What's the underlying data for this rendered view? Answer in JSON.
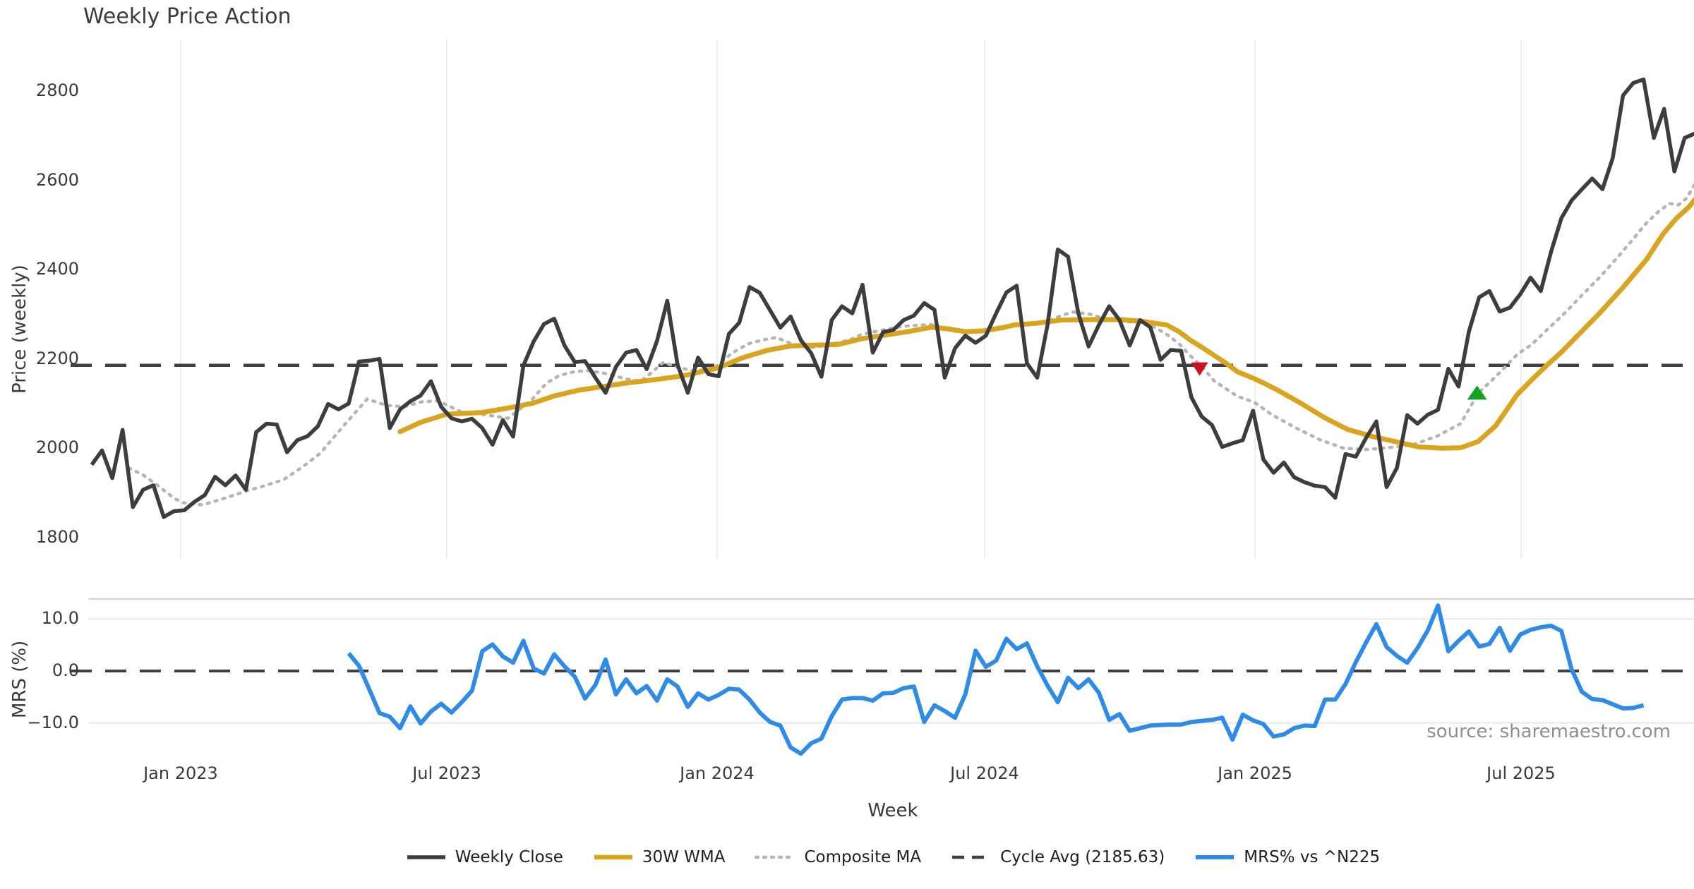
{
  "title": "Weekly Price Action",
  "source_note": "source: sharemaestro.com",
  "axes": {
    "price_axis_title": "Price (weekly)",
    "mrs_axis_title": "MRS (%)",
    "x_axis_title": "Week"
  },
  "legend": {
    "items": [
      {
        "label": "Weekly Close",
        "color": "#3d3d3d",
        "dash": "",
        "width": 5.5
      },
      {
        "label": "30W WMA",
        "color": "#d9a521",
        "dash": "",
        "width": 6.5
      },
      {
        "label": "Composite MA",
        "color": "#b5b5b5",
        "dash": "3 8",
        "width": 4.5
      },
      {
        "label": "Cycle Avg (2185.63)",
        "color": "#3f3f3f",
        "dash": "17 11",
        "width": 4.5
      },
      {
        "label": "MRS% vs ^N225",
        "color": "#2e8be6",
        "dash": "",
        "width": 6
      }
    ]
  },
  "colors": {
    "close": "#3d3d3d",
    "wma": "#d9a521",
    "composite": "#b5b5b5",
    "cycle_dash": "#3f3f3f",
    "mrs": "#2e8be6",
    "grid_vertical": "#ededf2",
    "grid_horizontal": "#e8e8ee",
    "panel_border": "#d4d4da",
    "marker_down": "#cc1322",
    "marker_up": "#13a224"
  },
  "chart_data": [
    {
      "type": "line",
      "panel": "price",
      "ylabel": "Price (weekly)",
      "ylim": [
        1760,
        2880
      ],
      "grid": "vertical-only",
      "x_ticks": [
        {
          "label": "Jan 2023",
          "week": 8.65
        },
        {
          "label": "Jul 2023",
          "week": 34.55
        },
        {
          "label": "Jan 2024",
          "week": 60.85
        },
        {
          "label": "Jul 2024",
          "week": 86.88
        },
        {
          "label": "Jan 2025",
          "week": 113.19
        },
        {
          "label": "Jul 2025",
          "week": 139.08
        }
      ],
      "y_ticks": [
        {
          "label": "2800",
          "value": 2800
        },
        {
          "label": "2600",
          "value": 2600
        },
        {
          "label": "2400",
          "value": 2400
        },
        {
          "label": "2200",
          "value": 2200
        },
        {
          "label": "2000",
          "value": 2000
        },
        {
          "label": "1800",
          "value": 1800
        }
      ],
      "cycle_avg": 2185.63,
      "series": [
        {
          "name": "Weekly Close",
          "style": "solid",
          "start_week": 0,
          "values": [
            1963,
            1995,
            1933,
            2041,
            1868,
            1907,
            1917,
            1846,
            1859,
            1861,
            1880,
            1895,
            1936,
            1917,
            1939,
            1907,
            2036,
            2055,
            2053,
            1991,
            2018,
            2027,
            2049,
            2099,
            2087,
            2100,
            2194,
            2196,
            2200,
            2045,
            2087,
            2105,
            2118,
            2150,
            2093,
            2067,
            2060,
            2066,
            2045,
            2008,
            2063,
            2026,
            2185,
            2239,
            2278,
            2290,
            2230,
            2193,
            2195,
            2158,
            2124,
            2182,
            2214,
            2220,
            2177,
            2240,
            2330,
            2187,
            2124,
            2203,
            2166,
            2161,
            2256,
            2281,
            2361,
            2348,
            2309,
            2270,
            2295,
            2242,
            2213,
            2160,
            2287,
            2318,
            2302,
            2366,
            2214,
            2260,
            2265,
            2287,
            2297,
            2325,
            2310,
            2158,
            2224,
            2252,
            2236,
            2252,
            2302,
            2349,
            2364,
            2190,
            2158,
            2276,
            2445,
            2429,
            2302,
            2228,
            2276,
            2318,
            2287,
            2230,
            2287,
            2271,
            2198,
            2220,
            2218,
            2114,
            2071,
            2052,
            2003,
            2011,
            2018,
            2084,
            1975,
            1945,
            1968,
            1935,
            1924,
            1916,
            1913,
            1889,
            1987,
            1981,
            2023,
            2060,
            1913,
            1956,
            2074,
            2055,
            2075,
            2086,
            2178,
            2138,
            2261,
            2338,
            2352,
            2306,
            2315,
            2345,
            2382,
            2352,
            2440,
            2515,
            2555,
            2580,
            2604,
            2580,
            2650,
            2790,
            2818,
            2826,
            2695,
            2760,
            2620,
            2695,
            2705
          ]
        },
        {
          "name": "30W WMA",
          "style": "solid",
          "points": [
            [
              30,
              2037
            ],
            [
              32,
              2058
            ],
            [
              34.5,
              2076
            ],
            [
              38,
              2080
            ],
            [
              40.5,
              2090
            ],
            [
              42.8,
              2100
            ],
            [
              45,
              2117
            ],
            [
              47.4,
              2130
            ],
            [
              49.7,
              2138
            ],
            [
              52,
              2146
            ],
            [
              54.3,
              2152
            ],
            [
              57.5,
              2162
            ],
            [
              60.8,
              2179
            ],
            [
              63.4,
              2203
            ],
            [
              65.7,
              2219
            ],
            [
              68,
              2229
            ],
            [
              70.3,
              2231
            ],
            [
              72.6,
              2232
            ],
            [
              74.9,
              2245
            ],
            [
              77.1,
              2253
            ],
            [
              79.4,
              2261
            ],
            [
              81.7,
              2271
            ],
            [
              83.4,
              2267
            ],
            [
              85,
              2261
            ],
            [
              86.8,
              2263
            ],
            [
              88.6,
              2270
            ],
            [
              89.8,
              2276
            ],
            [
              92,
              2280
            ],
            [
              94.3,
              2287
            ],
            [
              97,
              2288
            ],
            [
              100.1,
              2288
            ],
            [
              102.3,
              2284
            ],
            [
              104.6,
              2276
            ],
            [
              105.8,
              2261
            ],
            [
              106.9,
              2242
            ],
            [
              108.1,
              2225
            ],
            [
              109.2,
              2208
            ],
            [
              110.4,
              2190
            ],
            [
              111.5,
              2171
            ],
            [
              113.1,
              2156
            ],
            [
              114.2,
              2144
            ],
            [
              115.4,
              2130
            ],
            [
              117.7,
              2100
            ],
            [
              120,
              2068
            ],
            [
              122.2,
              2042
            ],
            [
              124.5,
              2027
            ],
            [
              126.8,
              2015
            ],
            [
              129.1,
              2003
            ],
            [
              131.3,
              2000
            ],
            [
              133.2,
              2001
            ],
            [
              134.9,
              2015
            ],
            [
              136.6,
              2050
            ],
            [
              138.7,
              2120
            ],
            [
              140.2,
              2155
            ],
            [
              141.6,
              2186
            ],
            [
              143,
              2215
            ],
            [
              144.4,
              2248
            ],
            [
              146.7,
              2302
            ],
            [
              149,
              2360
            ],
            [
              151.3,
              2423
            ],
            [
              152.9,
              2480
            ],
            [
              154.2,
              2515
            ],
            [
              155.4,
              2540
            ],
            [
              156,
              2557
            ]
          ]
        },
        {
          "name": "Composite MA",
          "style": "dotted",
          "points": [
            [
              3.6,
              1956
            ],
            [
              5,
              1940
            ],
            [
              6.5,
              1915
            ],
            [
              8,
              1888
            ],
            [
              8.9,
              1878
            ],
            [
              10.8,
              1873
            ],
            [
              12.5,
              1885
            ],
            [
              14,
              1896
            ],
            [
              15.3,
              1906
            ],
            [
              17,
              1917
            ],
            [
              18.7,
              1930
            ],
            [
              20.5,
              1958
            ],
            [
              22.2,
              1988
            ],
            [
              24.5,
              2050
            ],
            [
              26.8,
              2110
            ],
            [
              28.7,
              2096
            ],
            [
              30.4,
              2093
            ],
            [
              32.1,
              2104
            ],
            [
              33.7,
              2106
            ],
            [
              35.9,
              2082
            ],
            [
              38.3,
              2075
            ],
            [
              40.5,
              2067
            ],
            [
              42.8,
              2108
            ],
            [
              44.2,
              2145
            ],
            [
              45.5,
              2163
            ],
            [
              46.9,
              2171
            ],
            [
              48.3,
              2174
            ],
            [
              50.3,
              2166
            ],
            [
              52,
              2155
            ],
            [
              53.4,
              2150
            ],
            [
              54.3,
              2166
            ],
            [
              55.6,
              2192
            ],
            [
              57.2,
              2180
            ],
            [
              58.8,
              2172
            ],
            [
              60.7,
              2182
            ],
            [
              62.3,
              2213
            ],
            [
              63.9,
              2234
            ],
            [
              65.2,
              2242
            ],
            [
              66.6,
              2248
            ],
            [
              68,
              2235
            ],
            [
              69.1,
              2228
            ],
            [
              70.3,
              2226
            ],
            [
              72.4,
              2235
            ],
            [
              73.8,
              2243
            ],
            [
              74.9,
              2255
            ],
            [
              76.4,
              2262
            ],
            [
              78.1,
              2270
            ],
            [
              79.4,
              2274
            ],
            [
              81.7,
              2277
            ],
            [
              84,
              2262
            ],
            [
              86.3,
              2262
            ],
            [
              88.6,
              2267
            ],
            [
              89.8,
              2276
            ],
            [
              92,
              2280
            ],
            [
              93.2,
              2286
            ],
            [
              94.3,
              2297
            ],
            [
              95.5,
              2305
            ],
            [
              97.2,
              2300
            ],
            [
              98,
              2294
            ],
            [
              100.1,
              2285
            ],
            [
              102.3,
              2280
            ],
            [
              103.5,
              2270
            ],
            [
              104.6,
              2255
            ],
            [
              105.8,
              2234
            ],
            [
              106.9,
              2207
            ],
            [
              108.1,
              2181
            ],
            [
              109.2,
              2151
            ],
            [
              111.5,
              2116
            ],
            [
              113.1,
              2103
            ],
            [
              114.9,
              2074
            ],
            [
              117.2,
              2045
            ],
            [
              119.5,
              2019
            ],
            [
              121.8,
              2000
            ],
            [
              124.1,
              1997
            ],
            [
              126.4,
              2002
            ],
            [
              128.6,
              2008
            ],
            [
              130.9,
              2027
            ],
            [
              133.2,
              2055
            ],
            [
              134.9,
              2123
            ],
            [
              136.6,
              2160
            ],
            [
              138.7,
              2210
            ],
            [
              140.1,
              2232
            ],
            [
              141.6,
              2265
            ],
            [
              143.3,
              2302
            ],
            [
              145.1,
              2345
            ],
            [
              146.7,
              2382
            ],
            [
              148.3,
              2423
            ],
            [
              149.9,
              2466
            ],
            [
              151.1,
              2500
            ],
            [
              152.4,
              2529
            ],
            [
              153.5,
              2548
            ],
            [
              154.4,
              2545
            ],
            [
              155.2,
              2560
            ],
            [
              156,
              2592
            ]
          ]
        },
        {
          "name": "Cycle Avg",
          "style": "dashed",
          "value": 2185.63
        }
      ],
      "markers": [
        {
          "shape": "triangle-down",
          "color": "#cc1322",
          "week": 107.8,
          "price": 2178
        },
        {
          "shape": "triangle-up",
          "color": "#13a224",
          "week": 134.8,
          "price": 2123
        }
      ]
    },
    {
      "type": "line",
      "panel": "mrs",
      "ylabel": "MRS (%)",
      "xlabel": "Week",
      "ylim": [
        -17.5,
        13.8
      ],
      "zero_line_dashed": true,
      "y_ticks": [
        {
          "label": "10.0",
          "value": 10
        },
        {
          "label": "0.0",
          "value": 0
        },
        {
          "label": "−10.0",
          "value": -10
        }
      ],
      "series": [
        {
          "name": "MRS% vs ^N225",
          "style": "solid",
          "start_week": 25,
          "values": [
            3.4,
            1.0,
            -3.5,
            -8.1,
            -8.8,
            -11.0,
            -6.8,
            -10.1,
            -7.8,
            -6.3,
            -8.0,
            -6.0,
            -3.8,
            3.8,
            5.1,
            2.8,
            1.6,
            5.8,
            0.5,
            -0.5,
            3.2,
            0.9,
            -1.1,
            -5.3,
            -2.7,
            2.2,
            -4.5,
            -1.6,
            -4.3,
            -2.9,
            -5.7,
            -1.6,
            -3.0,
            -6.9,
            -4.3,
            -5.5,
            -4.6,
            -3.4,
            -3.6,
            -5.5,
            -8.0,
            -9.8,
            -10.5,
            -14.7,
            -15.9,
            -13.9,
            -13.0,
            -8.7,
            -5.5,
            -5.2,
            -5.2,
            -5.7,
            -4.3,
            -4.2,
            -3.3,
            -3.0,
            -9.8,
            -6.6,
            -7.7,
            -9.0,
            -4.5,
            3.9,
            0.8,
            2.0,
            6.2,
            4.2,
            5.3,
            0.9,
            -2.8,
            -6.0,
            -1.3,
            -3.3,
            -1.6,
            -4.2,
            -9.4,
            -8.3,
            -11.5,
            -11.0,
            -10.5,
            -10.4,
            -10.3,
            -10.3,
            -9.8,
            -9.6,
            -9.4,
            -9.0,
            -13.2,
            -8.4,
            -9.5,
            -10.2,
            -12.6,
            -12.2,
            -11.0,
            -10.5,
            -10.6,
            -5.5,
            -5.5,
            -2.5,
            1.7,
            5.5,
            9.0,
            4.6,
            2.9,
            1.6,
            4.4,
            7.8,
            12.6,
            3.8,
            5.8,
            7.6,
            4.7,
            5.2,
            8.3,
            3.9,
            7.0,
            7.9,
            8.4,
            8.7,
            7.7,
            0.3,
            -4.0,
            -5.4,
            -5.6,
            -6.4,
            -7.2,
            -7.1,
            -6.6
          ]
        }
      ]
    }
  ]
}
